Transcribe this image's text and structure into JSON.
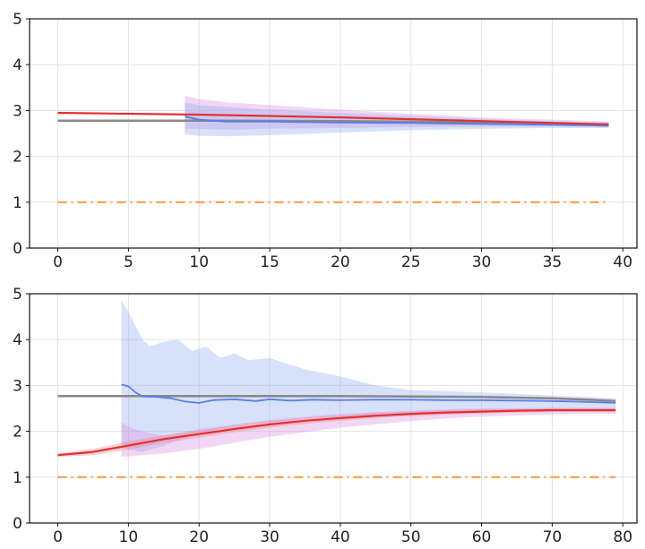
{
  "chart_data": [
    {
      "type": "line",
      "title": "",
      "xlabel": "",
      "ylabel": "",
      "xlim": [
        -2,
        41
      ],
      "ylim": [
        0,
        5
      ],
      "xticks": [
        0,
        5,
        10,
        15,
        20,
        25,
        30,
        35,
        40
      ],
      "yticks": [
        0,
        1,
        2,
        3,
        4,
        5
      ],
      "grid": true,
      "series": [
        {
          "kind": "band",
          "color": "#d98be0",
          "x": [
            9,
            10,
            12,
            15,
            20,
            25,
            30,
            35,
            39
          ],
          "upper": [
            3.32,
            3.25,
            3.18,
            3.12,
            3.02,
            2.93,
            2.85,
            2.8,
            2.76
          ],
          "lower": [
            2.6,
            2.6,
            2.58,
            2.6,
            2.62,
            2.64,
            2.65,
            2.65,
            2.65
          ]
        },
        {
          "kind": "band",
          "color": "#8faaf0",
          "x": [
            9,
            10,
            12,
            15,
            20,
            25,
            30,
            35,
            39
          ],
          "upper": [
            3.18,
            3.12,
            3.08,
            3.02,
            2.95,
            2.88,
            2.82,
            2.77,
            2.74
          ],
          "lower": [
            2.48,
            2.45,
            2.44,
            2.46,
            2.52,
            2.57,
            2.6,
            2.62,
            2.62
          ]
        },
        {
          "kind": "line",
          "color": "#888888",
          "width": 2.5,
          "x": [
            0,
            10,
            20,
            30,
            35,
            39
          ],
          "y": [
            2.78,
            2.78,
            2.77,
            2.74,
            2.71,
            2.67
          ]
        },
        {
          "kind": "line",
          "color": "#5a80e0",
          "width": 2,
          "x": [
            9,
            10,
            12,
            15,
            20,
            25,
            30,
            35,
            39
          ],
          "y": [
            2.87,
            2.8,
            2.76,
            2.76,
            2.74,
            2.73,
            2.71,
            2.69,
            2.67
          ]
        },
        {
          "kind": "line",
          "color": "#e53030",
          "width": 2.2,
          "x": [
            0,
            5,
            10,
            15,
            20,
            25,
            30,
            35,
            39
          ],
          "y": [
            2.95,
            2.93,
            2.91,
            2.88,
            2.85,
            2.81,
            2.77,
            2.73,
            2.7
          ]
        },
        {
          "kind": "line",
          "color": "#f39a3a",
          "width": 2,
          "dash": "10 5 2 5",
          "x": [
            0,
            39
          ],
          "y": [
            1.0,
            1.0
          ]
        }
      ]
    },
    {
      "type": "line",
      "title": "",
      "xlabel": "",
      "ylabel": "",
      "xlim": [
        -4,
        82
      ],
      "ylim": [
        0,
        5
      ],
      "xticks": [
        0,
        10,
        20,
        30,
        40,
        50,
        60,
        70,
        80
      ],
      "yticks": [
        0,
        1,
        2,
        3,
        4,
        5
      ],
      "grid": true,
      "series": [
        {
          "kind": "band",
          "color": "#8faaf0",
          "x": [
            9,
            10,
            12,
            13,
            15,
            17,
            19,
            21,
            23,
            25,
            27,
            30,
            35,
            40,
            45,
            50,
            55,
            60,
            65,
            70,
            75,
            79
          ],
          "upper": [
            4.85,
            4.6,
            4.0,
            3.85,
            3.95,
            4.0,
            3.75,
            3.85,
            3.6,
            3.7,
            3.55,
            3.6,
            3.35,
            3.2,
            3.0,
            2.9,
            2.88,
            2.85,
            2.82,
            2.78,
            2.75,
            2.72
          ],
          "lower": [
            1.75,
            1.6,
            1.55,
            1.6,
            1.68,
            1.8,
            1.9,
            1.98,
            2.05,
            2.1,
            2.15,
            2.2,
            2.28,
            2.32,
            2.36,
            2.4,
            2.42,
            2.44,
            2.45,
            2.45,
            2.45,
            2.46
          ]
        },
        {
          "kind": "band",
          "color": "#d98be0",
          "x": [
            9,
            10,
            12,
            15,
            20,
            25,
            30,
            35,
            40,
            45,
            50,
            55,
            60,
            65,
            70,
            75,
            79
          ],
          "upper": [
            2.2,
            2.1,
            2.0,
            1.9,
            2.05,
            2.15,
            2.25,
            2.32,
            2.38,
            2.42,
            2.45,
            2.48,
            2.5,
            2.51,
            2.52,
            2.52,
            2.52
          ],
          "lower": [
            1.45,
            1.45,
            1.48,
            1.52,
            1.62,
            1.75,
            1.88,
            1.98,
            2.08,
            2.15,
            2.22,
            2.28,
            2.32,
            2.35,
            2.37,
            2.38,
            2.38
          ]
        },
        {
          "kind": "band",
          "color": "#f08080",
          "x": [
            0,
            5,
            10,
            15,
            20,
            25,
            30,
            35,
            40,
            45,
            50,
            55,
            60,
            65,
            70,
            75,
            79
          ],
          "upper": [
            1.52,
            1.62,
            1.78,
            1.92,
            2.02,
            2.13,
            2.22,
            2.3,
            2.35,
            2.4,
            2.43,
            2.46,
            2.48,
            2.49,
            2.49,
            2.49,
            2.49
          ],
          "lower": [
            1.44,
            1.48,
            1.6,
            1.75,
            1.86,
            1.98,
            2.08,
            2.16,
            2.23,
            2.29,
            2.33,
            2.36,
            2.39,
            2.41,
            2.42,
            2.42,
            2.42
          ]
        },
        {
          "kind": "line",
          "color": "#888888",
          "width": 2.5,
          "x": [
            0,
            20,
            40,
            60,
            70,
            75,
            79
          ],
          "y": [
            2.77,
            2.77,
            2.77,
            2.75,
            2.72,
            2.69,
            2.66
          ]
        },
        {
          "kind": "line",
          "color": "#5a80e0",
          "width": 1.8,
          "x": [
            9,
            10,
            11,
            12,
            14,
            16,
            18,
            20,
            22,
            25,
            28,
            30,
            33,
            36,
            40,
            45,
            50,
            55,
            60,
            65,
            70,
            75,
            79
          ],
          "y": [
            3.02,
            2.98,
            2.85,
            2.76,
            2.75,
            2.72,
            2.65,
            2.62,
            2.68,
            2.7,
            2.66,
            2.7,
            2.67,
            2.69,
            2.68,
            2.69,
            2.69,
            2.68,
            2.68,
            2.67,
            2.66,
            2.64,
            2.62
          ]
        },
        {
          "kind": "line",
          "color": "#e53030",
          "width": 2.2,
          "x": [
            0,
            5,
            10,
            15,
            20,
            25,
            30,
            35,
            40,
            45,
            50,
            55,
            60,
            65,
            70,
            75,
            79
          ],
          "y": [
            1.48,
            1.55,
            1.69,
            1.83,
            1.94,
            2.05,
            2.15,
            2.23,
            2.29,
            2.34,
            2.38,
            2.41,
            2.43,
            2.45,
            2.46,
            2.46,
            2.46
          ]
        },
        {
          "kind": "line",
          "color": "#f39a3a",
          "width": 2,
          "dash": "10 5 2 5",
          "x": [
            0,
            79
          ],
          "y": [
            1.0,
            1.0
          ]
        }
      ]
    }
  ]
}
